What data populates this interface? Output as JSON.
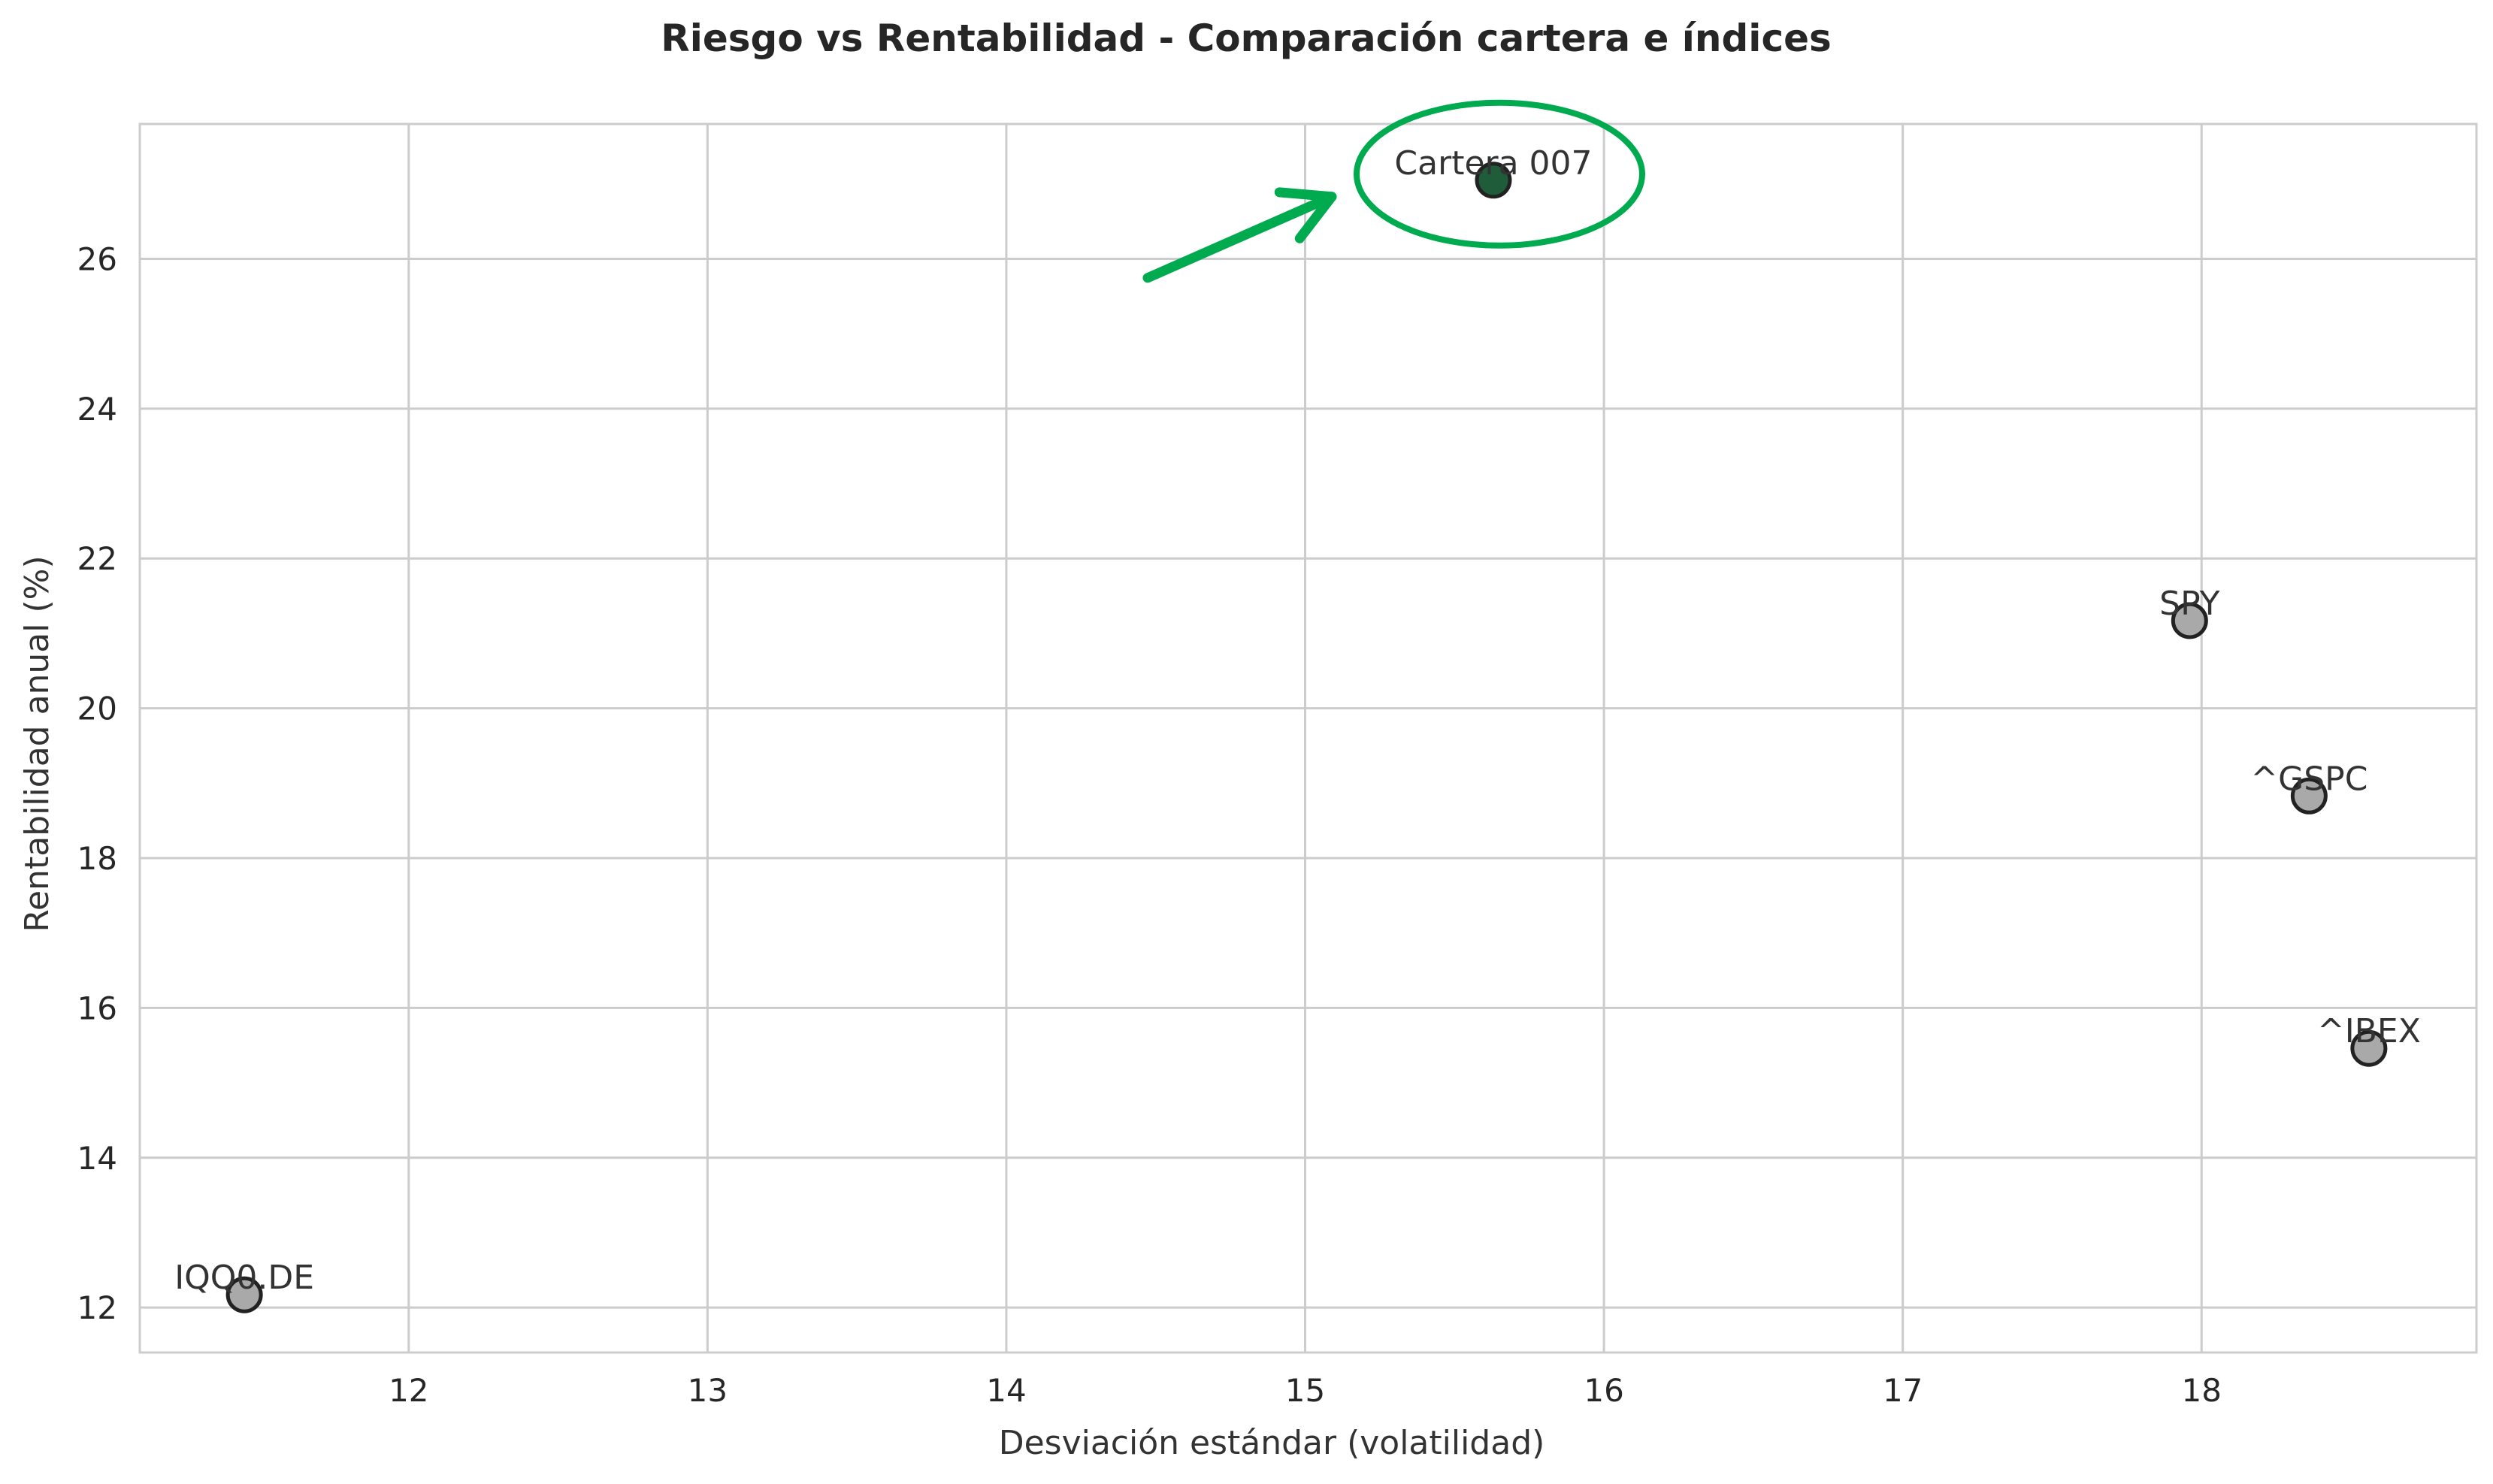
{
  "chart_data": {
    "type": "scatter",
    "title": "Riesgo vs Rentabilidad - Comparación cartera e índices",
    "xlabel": "Desviación estándar (volatilidad)",
    "ylabel": "Rentabilidad anual (%)",
    "xlim": [
      11.1,
      18.92
    ],
    "ylim": [
      11.4,
      27.8
    ],
    "xticks": [
      12,
      13,
      14,
      15,
      16,
      17,
      18
    ],
    "yticks": [
      12,
      14,
      16,
      18,
      20,
      22,
      24,
      26
    ],
    "grid": true,
    "points": [
      {
        "label": "Cartera 007",
        "x": 15.63,
        "y": 27.05,
        "color": "#1e5c3a",
        "highlight": true
      },
      {
        "label": "SPY",
        "x": 17.96,
        "y": 21.17,
        "color": "#a9a9a9"
      },
      {
        "label": "^GSPC",
        "x": 18.36,
        "y": 18.83,
        "color": "#a9a9a9"
      },
      {
        "label": "^IBEX",
        "x": 18.56,
        "y": 15.46,
        "color": "#a9a9a9"
      },
      {
        "label": "IQQ0.DE",
        "x": 11.45,
        "y": 12.17,
        "color": "#a9a9a9"
      }
    ],
    "annotation": {
      "shape": "ellipse-with-arrow",
      "color": "#00aa4f",
      "target": "Cartera 007"
    }
  }
}
